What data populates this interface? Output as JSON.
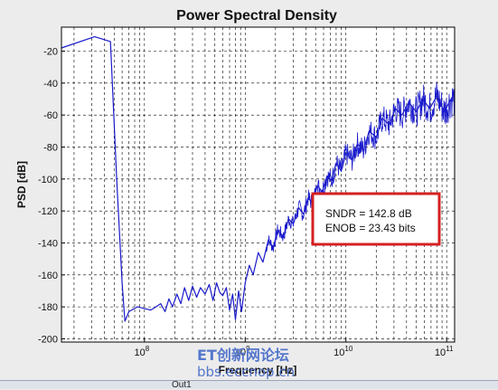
{
  "chart_data": {
    "type": "line",
    "title": "Power Spectral Density",
    "xlabel": "Frequency [Hz]",
    "ylabel": "PSD [dB]",
    "xscale": "log",
    "xlim": [
      15000000.0,
      120000000000.0
    ],
    "ylim": [
      -202,
      -5
    ],
    "grid": true,
    "line_color": "#1a1acc",
    "xticks": [
      {
        "value": 100000000.0,
        "base": "10",
        "exp": "8"
      },
      {
        "value": 1000000000.0,
        "base": "10",
        "exp": "9"
      },
      {
        "value": 10000000000.0,
        "base": "10",
        "exp": "10"
      },
      {
        "value": 100000000000.0,
        "base": "10",
        "exp": "11"
      }
    ],
    "yticks": [
      -20,
      -40,
      -60,
      -80,
      -100,
      -120,
      -140,
      -160,
      -180,
      -200
    ],
    "series": [
      {
        "x": [
          15000000.0,
          32000000.0,
          46000000.0,
          53000000.0,
          60000000.0,
          64000000.0,
          70000000.0,
          85000000.0,
          100000000.0,
          115000000.0,
          130000000.0,
          145000000.0,
          160000000.0,
          175000000.0,
          190000000.0,
          210000000.0,
          230000000.0,
          250000000.0,
          275000000.0,
          300000000.0,
          330000000.0,
          360000000.0,
          400000000.0,
          440000000.0,
          480000000.0,
          520000000.0,
          560000000.0,
          600000000.0,
          650000000.0,
          700000000.0,
          750000000.0,
          800000000.0,
          860000000.0,
          920000000.0,
          1000000000.0,
          1100000000.0,
          1200000000.0,
          1350000000.0,
          1500000000.0,
          1700000000.0,
          1900000000.0,
          2100000000.0,
          2400000000.0,
          2700000000.0,
          3000000000.0,
          3400000000.0,
          3800000000.0,
          4200000000.0,
          4700000000.0,
          5200000000.0,
          5800000000.0,
          6500000000.0,
          7200000000.0,
          8000000000.0,
          9000000000.0,
          10000000000.0,
          11500000000.0,
          13000000000.0,
          15000000000.0,
          17000000000.0,
          20000000000.0,
          23000000000.0,
          27000000000.0,
          31000000000.0,
          36000000000.0,
          42000000000.0,
          50000000000.0,
          58000000000.0,
          68000000000.0,
          80000000000.0,
          95000000000.0,
          110000000000.0
        ],
        "y": [
          -18,
          -11,
          -14,
          -100,
          -165,
          -189,
          -183,
          -180,
          -181,
          -182,
          -180,
          -178,
          -183,
          -175,
          -180,
          -172,
          -178,
          -168,
          -176,
          -167,
          -174,
          -168,
          -172,
          -166,
          -176,
          -165,
          -171,
          -173,
          -168,
          -182,
          -172,
          -188,
          -170,
          -183,
          -165,
          -154,
          -160,
          -146,
          -152,
          -138,
          -143,
          -132,
          -136,
          -125,
          -128,
          -118,
          -122,
          -112,
          -115,
          -104,
          -108,
          -98,
          -101,
          -90,
          -95,
          -84,
          -88,
          -78,
          -82,
          -70,
          -74,
          -62,
          -66,
          -56,
          -60,
          -52,
          -58,
          -50,
          -56,
          -48,
          -58,
          -50
        ]
      }
    ],
    "annotation": {
      "lines": [
        "SNDR = 142.8 dB",
        "ENOB = 23.43 bits"
      ],
      "border_color": "#d42020"
    }
  },
  "watermark": {
    "line1": "ET创新网论坛",
    "line2": "bbs.eccnop.cn",
    "color": "#5577cc"
  },
  "bottom_tab": "Out1"
}
